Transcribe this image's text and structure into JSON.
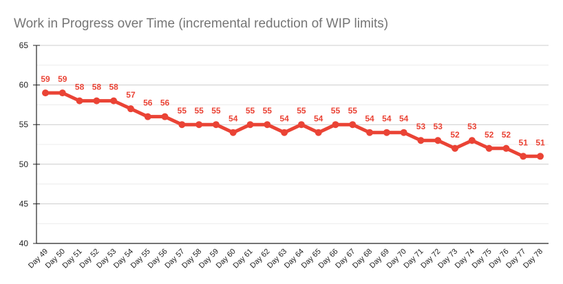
{
  "chart_data": {
    "type": "line",
    "title": "Work in Progress over Time (incremental reduction of WIP limits)",
    "xlabel": "",
    "ylabel": "",
    "ylim": [
      40,
      65
    ],
    "yticks": [
      "40",
      "45",
      "50",
      "55",
      "60",
      "65"
    ],
    "grid": true,
    "legend": "none",
    "color": "#ea4335",
    "categories": [
      "Day 49",
      "Day 50",
      "Day 51",
      "Day 52",
      "Day 53",
      "Day 54",
      "Day 55",
      "Day 56",
      "Day 57",
      "Day 58",
      "Day 59",
      "Day 60",
      "Day 61",
      "Day 62",
      "Day 63",
      "Day 64",
      "Day 65",
      "Day 66",
      "Day 67",
      "Day 68",
      "Day 69",
      "Day 70",
      "Day 71",
      "Day 72",
      "Day 73",
      "Day 74",
      "Day 75",
      "Day 76",
      "Day 77",
      "Day 78"
    ],
    "values": [
      59,
      59,
      58,
      58,
      58,
      57,
      56,
      56,
      55,
      55,
      55,
      54,
      55,
      55,
      54,
      55,
      54,
      55,
      55,
      54,
      54,
      54,
      53,
      53,
      52,
      53,
      52,
      52,
      51,
      51
    ]
  }
}
